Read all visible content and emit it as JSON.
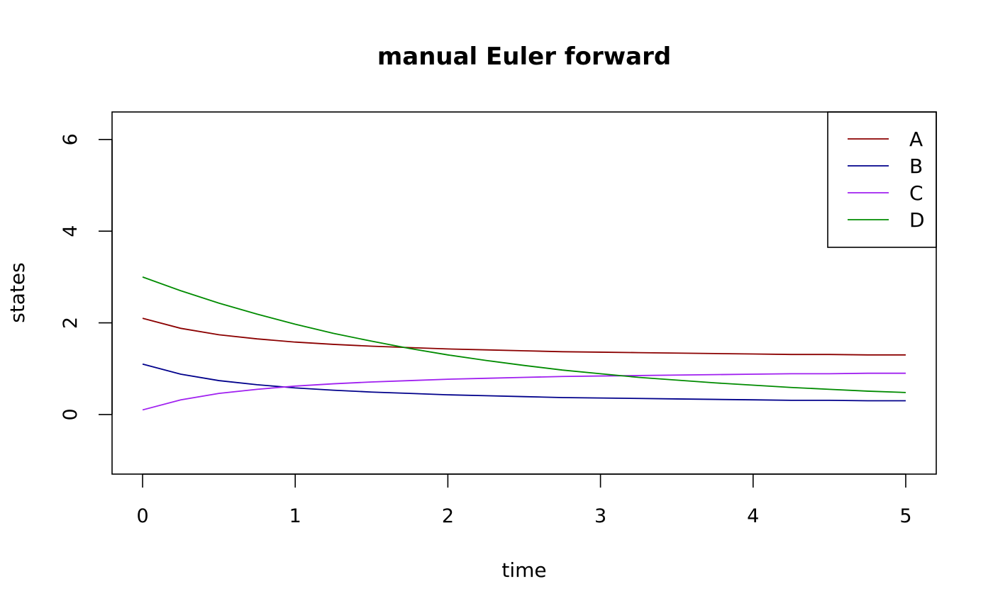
{
  "chart_data": {
    "type": "line",
    "title": "manual Euler forward",
    "xlabel": "time",
    "ylabel": "states",
    "xlim": [
      -0.2,
      5.2
    ],
    "ylim": [
      -1.3,
      6.6
    ],
    "xticks": [
      0,
      1,
      2,
      3,
      4,
      5
    ],
    "yticks": [
      0,
      2,
      4,
      6
    ],
    "grid": false,
    "legend_position": "top-right",
    "x": [
      0,
      0.25,
      0.5,
      0.75,
      1,
      1.25,
      1.5,
      1.75,
      2,
      2.25,
      2.5,
      2.75,
      3,
      3.25,
      3.5,
      3.75,
      4,
      4.25,
      4.5,
      4.75,
      5
    ],
    "series": [
      {
        "name": "A",
        "color": "#8B0000",
        "values": [
          2.1,
          1.88,
          1.74,
          1.65,
          1.58,
          1.53,
          1.49,
          1.46,
          1.43,
          1.41,
          1.39,
          1.37,
          1.36,
          1.35,
          1.34,
          1.33,
          1.32,
          1.31,
          1.31,
          1.3,
          1.3
        ]
      },
      {
        "name": "B",
        "color": "#00008B",
        "values": [
          1.1,
          0.88,
          0.74,
          0.65,
          0.58,
          0.53,
          0.49,
          0.46,
          0.43,
          0.41,
          0.39,
          0.37,
          0.36,
          0.35,
          0.34,
          0.33,
          0.32,
          0.31,
          0.31,
          0.3,
          0.3
        ]
      },
      {
        "name": "C",
        "color": "#A020F0",
        "values": [
          0.1,
          0.32,
          0.46,
          0.55,
          0.62,
          0.67,
          0.71,
          0.74,
          0.77,
          0.79,
          0.81,
          0.83,
          0.84,
          0.85,
          0.86,
          0.87,
          0.88,
          0.89,
          0.89,
          0.9,
          0.9
        ]
      },
      {
        "name": "D",
        "color": "#008B00",
        "values": [
          3.0,
          2.7,
          2.43,
          2.19,
          1.97,
          1.77,
          1.6,
          1.44,
          1.3,
          1.18,
          1.07,
          0.97,
          0.89,
          0.81,
          0.75,
          0.69,
          0.64,
          0.59,
          0.55,
          0.51,
          0.48
        ]
      }
    ]
  }
}
